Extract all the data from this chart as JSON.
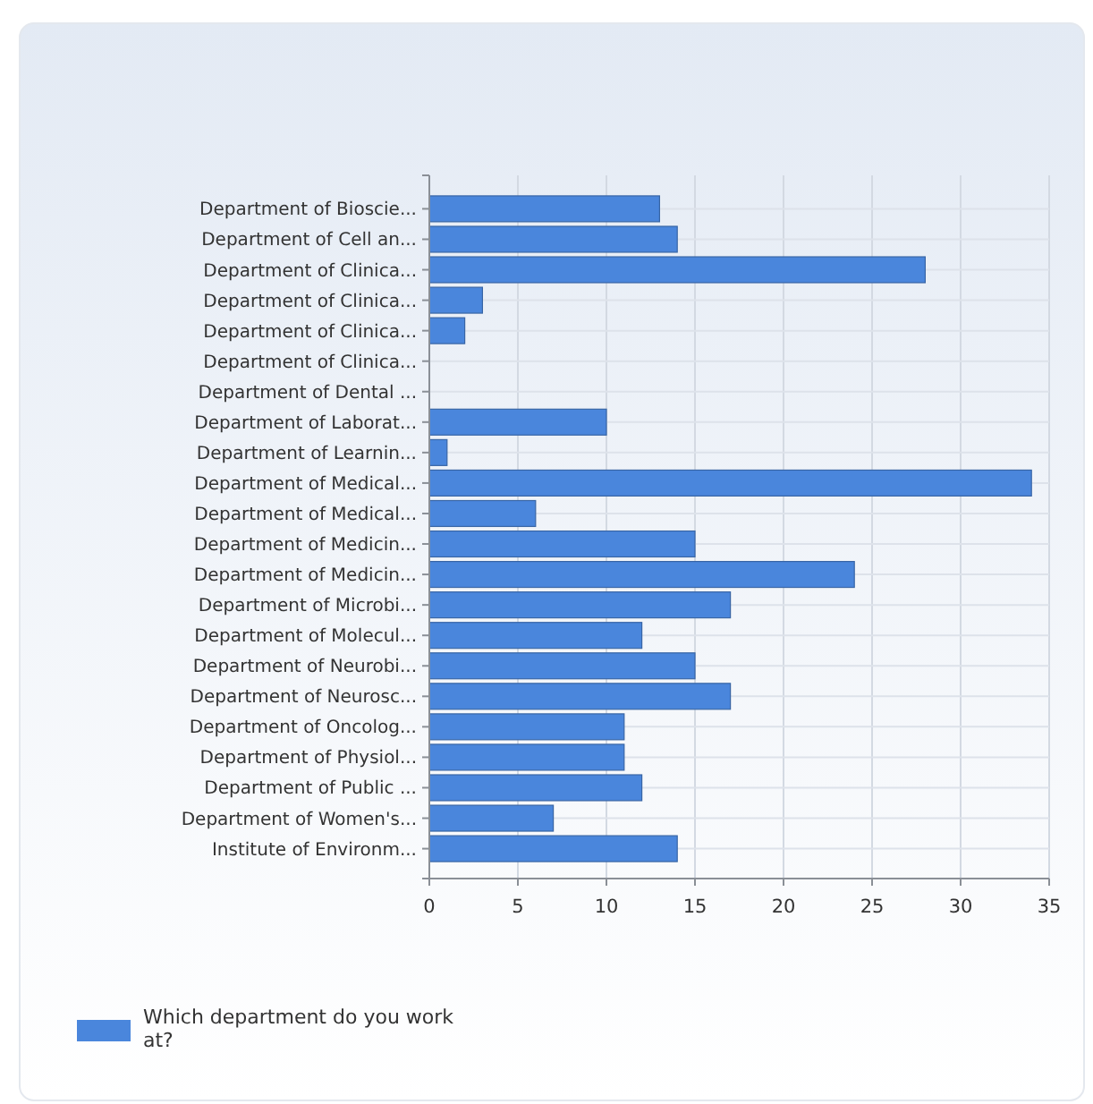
{
  "chart_data": {
    "type": "bar",
    "orientation": "horizontal",
    "categories": [
      "Department of Bioscie...",
      "Department of Cell an...",
      "Department of Clinica...",
      "Department of Clinica...",
      "Department of Clinica...",
      "Department of Clinica...",
      "Department of Dental ...",
      "Department of Laborat...",
      "Department of Learnin...",
      "Department of Medical...",
      "Department of Medical...",
      "Department of Medicin...",
      "Department of Medicin...",
      "Department of Microbi...",
      "Department of Molecul...",
      "Department of Neurobi...",
      "Department of Neurosc...",
      "Department of Oncolog...",
      "Department of Physiol...",
      "Department of Public ...",
      "Department of Women's...",
      "Institute of Environm..."
    ],
    "series": [
      {
        "name": "Which department do you work at?",
        "color": "#4a86dc",
        "values": [
          13,
          14,
          28,
          3,
          2,
          0,
          0,
          10,
          1,
          34,
          6,
          15,
          24,
          17,
          12,
          15,
          17,
          11,
          11,
          12,
          7,
          14
        ]
      }
    ],
    "xlim": [
      0,
      35
    ],
    "xticks": [
      0,
      5,
      10,
      15,
      20,
      25,
      30,
      35
    ],
    "grid": true,
    "legend": "bottom left"
  }
}
